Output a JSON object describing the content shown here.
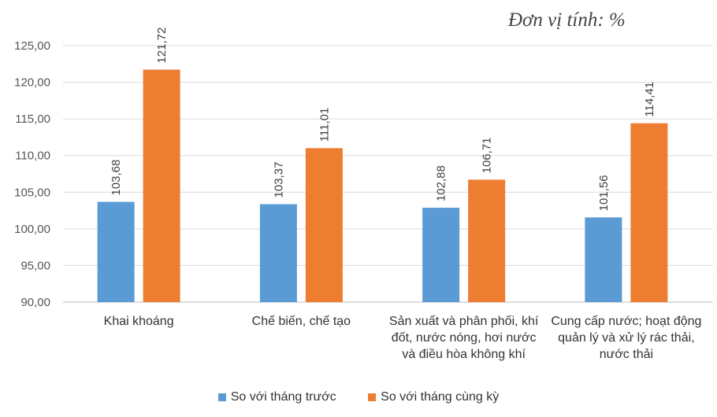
{
  "unit_label": "Đơn vị tính: %",
  "chart_data": {
    "type": "bar",
    "title": "",
    "xlabel": "",
    "ylabel": "",
    "ylim": [
      90,
      125
    ],
    "yticks": [
      "90,00",
      "95,00",
      "100,00",
      "105,00",
      "110,00",
      "115,00",
      "120,00",
      "125,00"
    ],
    "ytick_values": [
      90,
      95,
      100,
      105,
      110,
      115,
      120,
      125
    ],
    "grid": true,
    "legend_position": "bottom",
    "categories": [
      "Khai khoáng",
      "Chế biến, chế tạo",
      "Sản xuất và phân phối, khí đốt, nước nóng, hơi nước và điều hòa không khí",
      "Cung cấp nước; hoạt động quản lý và xử lý rác thải, nước thải"
    ],
    "series": [
      {
        "name": "So với tháng trước",
        "color": "#5B9BD5",
        "values": [
          103.68,
          103.37,
          102.88,
          101.56
        ],
        "labels": [
          "103,68",
          "103,37",
          "102,88",
          "101,56"
        ]
      },
      {
        "name": "So với tháng cùng kỳ",
        "color": "#ED7D31",
        "values": [
          121.72,
          111.01,
          106.71,
          114.41
        ],
        "labels": [
          "121,72",
          "111,01",
          "106,71",
          "114,41"
        ]
      }
    ]
  }
}
